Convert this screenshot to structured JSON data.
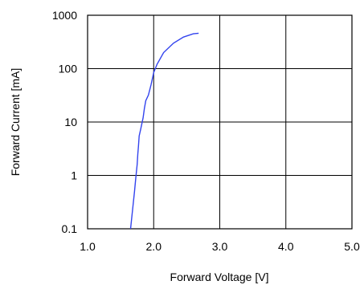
{
  "chart_data": {
    "type": "line",
    "xlabel": "Forward Voltage [V]",
    "ylabel": "Forward Current [mA]",
    "xlim": [
      1.0,
      5.0
    ],
    "ylim": [
      0.1,
      1000
    ],
    "yscale": "log",
    "grid": true,
    "x_ticks": [
      "1.0",
      "2.0",
      "3.0",
      "4.0",
      "5.0"
    ],
    "y_ticks": [
      "0.1",
      "1",
      "10",
      "100",
      "1000"
    ],
    "line_color": "#3344ee",
    "series": [
      {
        "x": [
          1.65,
          1.68,
          1.71,
          1.73,
          1.75,
          1.76,
          1.77,
          1.78,
          1.8,
          1.84,
          1.86,
          1.88,
          1.92,
          1.96,
          2.0,
          2.05,
          2.15,
          2.3,
          2.45,
          2.6,
          2.68
        ],
        "y": [
          0.1,
          0.22,
          0.5,
          0.9,
          1.6,
          2.5,
          3.5,
          5.5,
          7.0,
          12.0,
          18.0,
          25.0,
          32.0,
          50.0,
          85.0,
          120.0,
          200.0,
          300.0,
          390.0,
          450.0,
          460.0
        ]
      }
    ]
  }
}
